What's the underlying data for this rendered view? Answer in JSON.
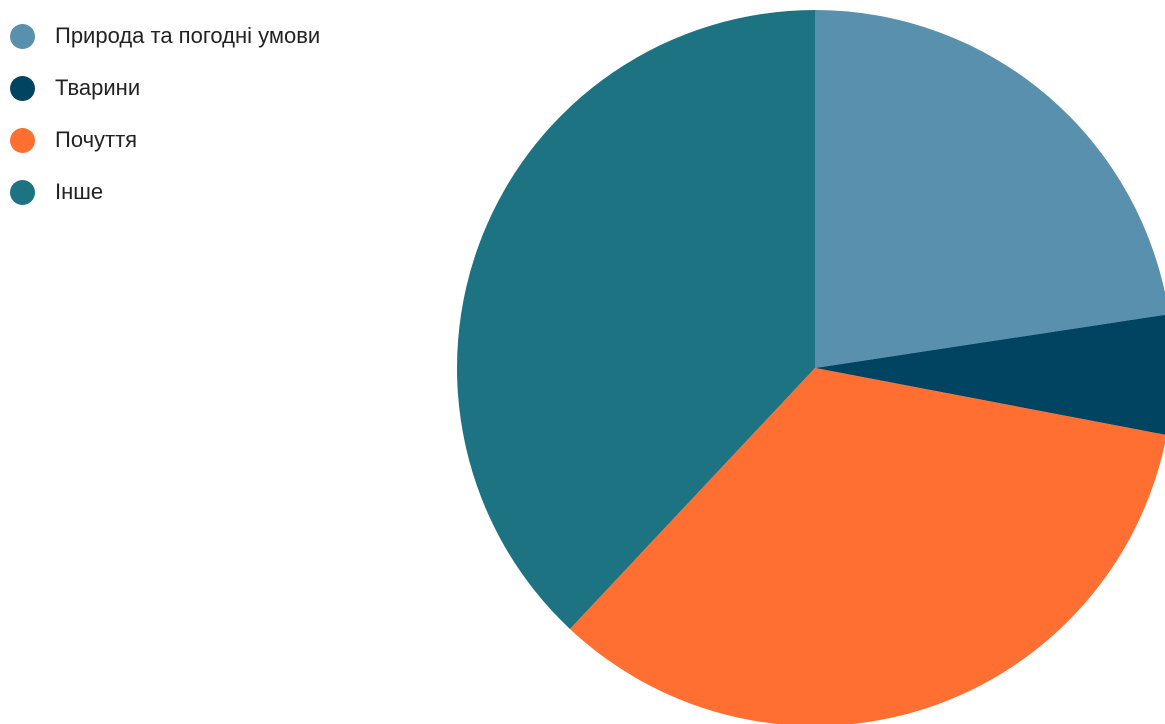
{
  "chart_data": {
    "type": "pie",
    "title": "",
    "categories": [
      "Природа та погодні умови",
      "Тварини",
      "Почуття",
      "Інше"
    ],
    "values": [
      22.6,
      5.4,
      34.0,
      38.0
    ],
    "colors": [
      "#5990AE",
      "#004461",
      "#FF6F32",
      "#1E7383"
    ],
    "legend_position": "left",
    "start_angle": "top",
    "direction": "clockwise"
  }
}
